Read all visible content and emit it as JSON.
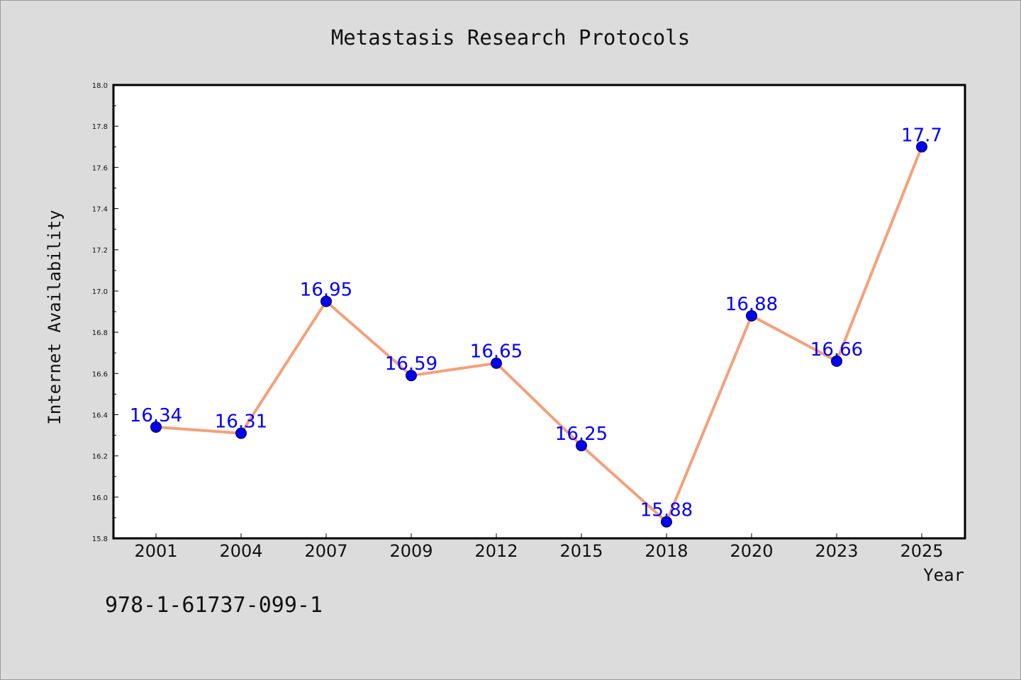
{
  "chart_data": {
    "type": "line",
    "title": "Metastasis Research Protocols",
    "xlabel": "Year",
    "ylabel": "Internet Availability",
    "categories": [
      "2001",
      "2004",
      "2007",
      "2009",
      "2012",
      "2015",
      "2018",
      "2020",
      "2023",
      "2025"
    ],
    "series": [
      {
        "values": [
          16.34,
          16.31,
          16.95,
          16.59,
          16.65,
          16.25,
          15.88,
          16.88,
          16.66,
          17.7
        ],
        "labels": [
          "16.34",
          "16.31",
          "16.95",
          "16.59",
          "16.65",
          "16.25",
          "15.88",
          "16.88",
          "16.66",
          "17.7"
        ]
      }
    ],
    "ylim": [
      15.8,
      18.0
    ],
    "yticks": [
      "15.8",
      "16.0",
      "16.2",
      "16.4",
      "16.6",
      "16.8",
      "17.0",
      "17.2",
      "17.4",
      "17.6",
      "17.8",
      "18.0"
    ],
    "grid": false,
    "colors": {
      "line": "#f4a07a",
      "marker": "#0000ee",
      "label": "#0000ff",
      "background": "#dcdcdc",
      "plot_area": "#ffffff"
    }
  },
  "annotation": "978-1-61737-099-1"
}
